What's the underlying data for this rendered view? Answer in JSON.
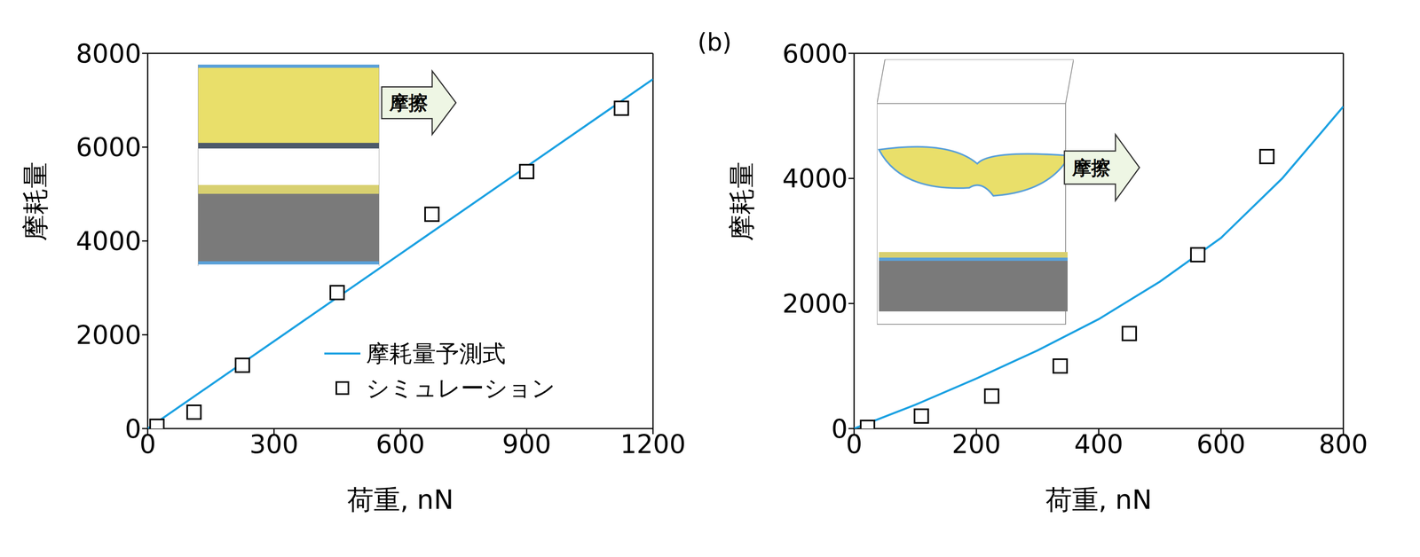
{
  "chart_data": [
    {
      "type": "scatter",
      "x_label": "荷重, nN",
      "y_label": "摩耗量",
      "annotations": [
        "摩擦"
      ],
      "legend": "lower right",
      "xlim": [
        0,
        1200
      ],
      "xticks": [
        0,
        300,
        600,
        900,
        1200
      ],
      "ylim": [
        0,
        8000
      ],
      "yticks": [
        0,
        2000,
        4000,
        6000,
        8000
      ],
      "series": [
        {
          "name": "摩耗量予測式",
          "type": "line",
          "color": "#1ba1e2",
          "x": [
            0,
            1200
          ],
          "values": [
            0,
            7450
          ]
        },
        {
          "name": "シミュレーション",
          "type": "scatter",
          "marker": "square",
          "color": "#000000",
          "x": [
            22,
            110,
            225,
            450,
            675,
            900,
            1125
          ],
          "values": [
            50,
            350,
            1350,
            2900,
            4570,
            5480,
            6830
          ]
        }
      ]
    },
    {
      "type": "scatter",
      "title": "(b)",
      "x_label": "荷重, nN",
      "y_label": "摩耗量",
      "annotations": [
        "摩擦"
      ],
      "xlim": [
        0,
        800
      ],
      "xticks": [
        0,
        200,
        400,
        600,
        800
      ],
      "ylim": [
        0,
        6000
      ],
      "yticks": [
        0,
        2000,
        4000,
        6000
      ],
      "series": [
        {
          "type": "line",
          "color": "#1ba1e2",
          "x": [
            0,
            100,
            200,
            300,
            400,
            500,
            600,
            700,
            800
          ],
          "values": [
            0,
            380,
            800,
            1250,
            1750,
            2350,
            3050,
            4000,
            5150
          ]
        },
        {
          "type": "scatter",
          "marker": "square",
          "color": "#000000",
          "x": [
            22,
            110,
            225,
            337,
            450,
            562,
            675
          ],
          "values": [
            20,
            200,
            520,
            1000,
            1520,
            2780,
            4350
          ]
        }
      ]
    }
  ]
}
